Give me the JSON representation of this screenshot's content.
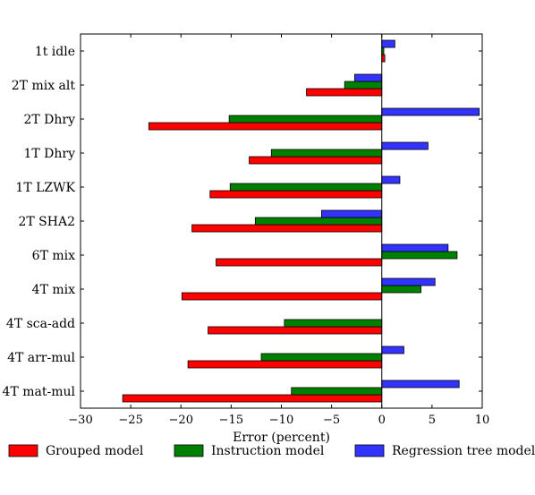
{
  "chart_data": {
    "type": "bar",
    "orientation": "horizontal",
    "title": "",
    "xlabel": "Error (percent)",
    "ylabel": "",
    "xlim": [
      -30,
      10
    ],
    "xticks": [
      -30,
      -25,
      -20,
      -15,
      -10,
      -5,
      0,
      5,
      10
    ],
    "xtick_labels": [
      "−30",
      "−25",
      "−20",
      "−15",
      "−10",
      "−5",
      "0",
      "5",
      "10"
    ],
    "grid": false,
    "legend_placement": "bottom",
    "zero_line": true,
    "categories": [
      "1t idle",
      "2T mix alt",
      "2T Dhry",
      "1T Dhry",
      "1T LZWK",
      "2T SHA2",
      "6T mix",
      "4T mix",
      "4T sca-add",
      "4T arr-mul",
      "4T mat-mul"
    ],
    "series": [
      {
        "name": "Grouped model",
        "color": "#ff0000",
        "values": [
          0.3,
          -7.5,
          -23.2,
          -13.2,
          -17.1,
          -18.9,
          -16.5,
          -19.9,
          -17.3,
          -19.3,
          -25.8
        ]
      },
      {
        "name": "Instruction model",
        "color": "#008000",
        "values": [
          0.2,
          -3.7,
          -15.2,
          -11.0,
          -15.1,
          -12.6,
          7.5,
          3.9,
          -9.7,
          -12.0,
          -9.0
        ]
      },
      {
        "name": "Regression tree model",
        "color": "#3333ff",
        "values": [
          1.3,
          -2.7,
          9.7,
          4.6,
          1.8,
          -6.0,
          6.6,
          5.3,
          0.0,
          2.2,
          7.7
        ]
      }
    ]
  }
}
